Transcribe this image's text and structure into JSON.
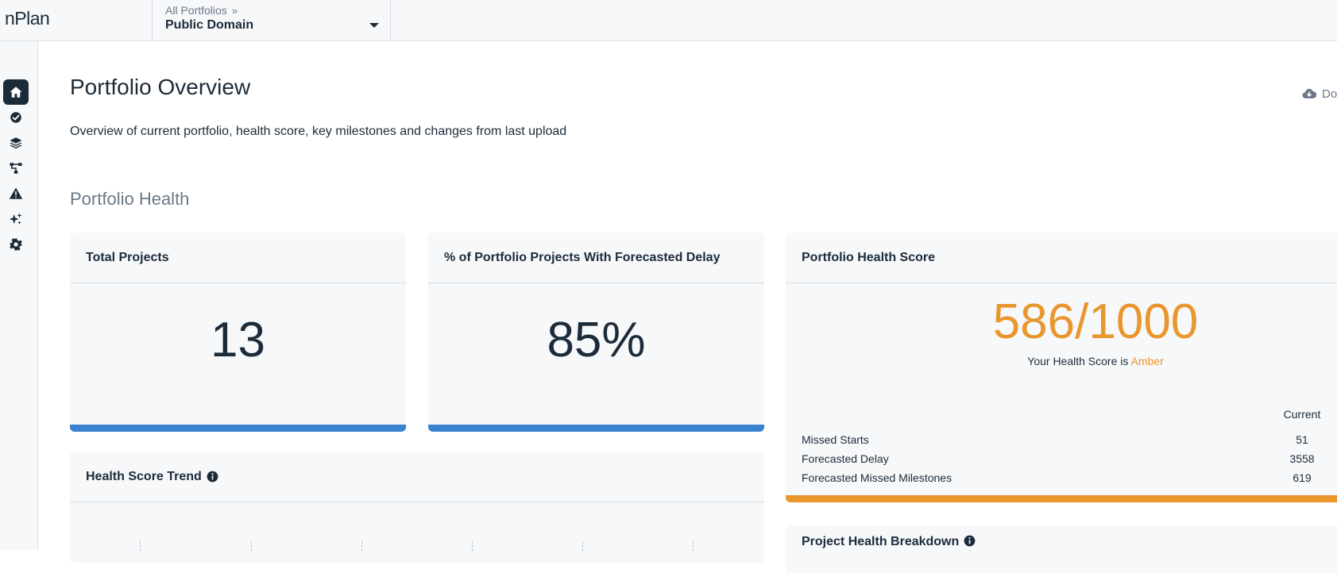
{
  "app": {
    "logo_text": "nPlan"
  },
  "portfolio_picker": {
    "breadcrumb": "All Portfolios",
    "breadcrumb_sep": "»",
    "selected": "Public Domain"
  },
  "sidebar": {
    "items": [
      {
        "icon": "home-icon",
        "active": true
      },
      {
        "icon": "check-circle-icon",
        "active": false
      },
      {
        "icon": "layers-icon",
        "active": false
      },
      {
        "icon": "hierarchy-icon",
        "active": false
      },
      {
        "icon": "warning-icon",
        "active": false
      },
      {
        "icon": "sparkles-icon",
        "active": false
      },
      {
        "icon": "gear-icon",
        "active": false
      }
    ]
  },
  "page": {
    "title": "Portfolio Overview",
    "subtitle": "Overview of current portfolio, health score, key milestones and changes from last upload",
    "download_label": "Do",
    "section_title": "Portfolio Health"
  },
  "cards": {
    "total_projects": {
      "title": "Total Projects",
      "value": "13"
    },
    "forecasted_delay": {
      "title": "% of Portfolio Projects With Forecasted Delay",
      "value": "85%"
    },
    "health_score": {
      "title": "Portfolio Health Score",
      "score": "586/1000",
      "caption_prefix": "Your Health Score is",
      "caption_status": "Amber",
      "column_header": "Current",
      "metrics": [
        {
          "label": "Missed Starts",
          "value": "51"
        },
        {
          "label": "Forecasted Delay",
          "value": "3558"
        },
        {
          "label": "Forecasted Missed Milestones",
          "value": "619"
        }
      ]
    },
    "health_trend": {
      "title": "Health Score Trend"
    },
    "project_breakdown": {
      "title": "Project Health Breakdown"
    }
  },
  "colors": {
    "accent_blue": "#3a82ce",
    "amber": "#e9962d",
    "text_dark": "#1c2b3a",
    "text_muted": "#6b7887"
  }
}
